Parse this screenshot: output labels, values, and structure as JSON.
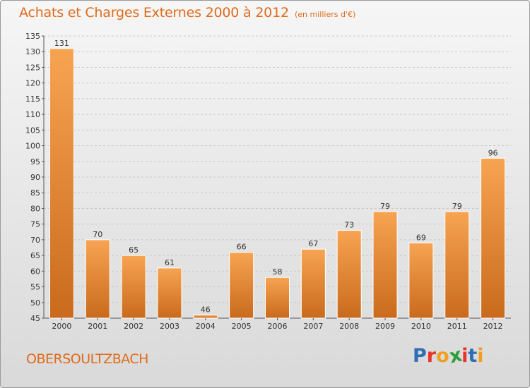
{
  "header": {
    "title": "Achats et Charges Externes 2000 à 2012",
    "unit": "(en milliers d'€)"
  },
  "footer": {
    "town": "OBERSOULTZBACH",
    "logo": "Proxiti"
  },
  "colors": {
    "accent": "#e06b1a",
    "bar_light": "#f7a452",
    "bar_dark": "#c96a1c",
    "logo_letters": [
      "#2f6db5",
      "#e8342a",
      "#f0a020",
      "#2e9e3a",
      "#e8342a",
      "#2f6db5",
      "#f0a020"
    ]
  },
  "chart_data": {
    "type": "bar",
    "title": "Achats et Charges Externes 2000 à 2012",
    "subtitle": "(en milliers d'€)",
    "categories": [
      "2000",
      "2001",
      "2002",
      "2003",
      "2004",
      "2005",
      "2006",
      "2007",
      "2008",
      "2009",
      "2010",
      "2011",
      "2012"
    ],
    "values": [
      131,
      70,
      65,
      61,
      46,
      66,
      58,
      67,
      73,
      79,
      69,
      79,
      96
    ],
    "ylim": [
      45,
      135
    ],
    "yticks": [
      45,
      50,
      55,
      60,
      65,
      70,
      75,
      80,
      85,
      90,
      95,
      100,
      105,
      110,
      115,
      120,
      125,
      130,
      135
    ],
    "grid": "horizontal dashed",
    "data_labels": true
  }
}
